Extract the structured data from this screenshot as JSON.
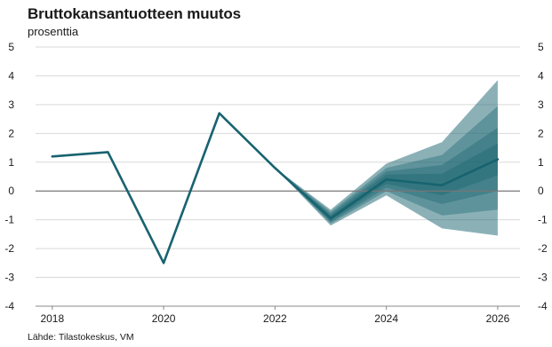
{
  "chart_data": {
    "type": "line",
    "title": "Bruttokansantuotteen muutos",
    "subtitle": "prosenttia",
    "source": "Lähde: Tilastokeskus, VM",
    "xlim": [
      2017.7,
      2026.4
    ],
    "ylim": [
      -4,
      5
    ],
    "y_ticks": [
      5,
      4,
      3,
      2,
      1,
      0,
      -1,
      -2,
      -3,
      -4
    ],
    "x_ticks": [
      2018,
      2020,
      2022,
      2024,
      2026
    ],
    "grid": true,
    "line_color": "#17636f",
    "series": [
      {
        "x": [
          2018,
          2019,
          2020,
          2021,
          2022,
          2023,
          2024,
          2025,
          2026
        ],
        "values": [
          1.2,
          1.35,
          -2.5,
          2.7,
          0.8,
          -0.95,
          0.4,
          0.2,
          1.1
        ]
      }
    ],
    "fan": {
      "x": [
        2022,
        2023,
        2024,
        2025,
        2026
      ],
      "color": "#17636f",
      "bands": [
        {
          "upper": [
            0.8,
            -0.65,
            0.95,
            1.7,
            3.85
          ],
          "lower": [
            0.8,
            -1.2,
            -0.15,
            -1.3,
            -1.55
          ]
        },
        {
          "upper": [
            0.8,
            -0.72,
            0.8,
            1.25,
            2.95
          ],
          "lower": [
            0.8,
            -1.13,
            0.0,
            -0.85,
            -0.65
          ]
        },
        {
          "upper": [
            0.8,
            -0.79,
            0.68,
            0.9,
            2.2
          ],
          "lower": [
            0.8,
            -1.08,
            0.12,
            -0.45,
            0.0
          ]
        },
        {
          "upper": [
            0.8,
            -0.85,
            0.57,
            0.6,
            1.65
          ],
          "lower": [
            0.8,
            -1.03,
            0.25,
            -0.15,
            0.55
          ]
        }
      ]
    }
  }
}
